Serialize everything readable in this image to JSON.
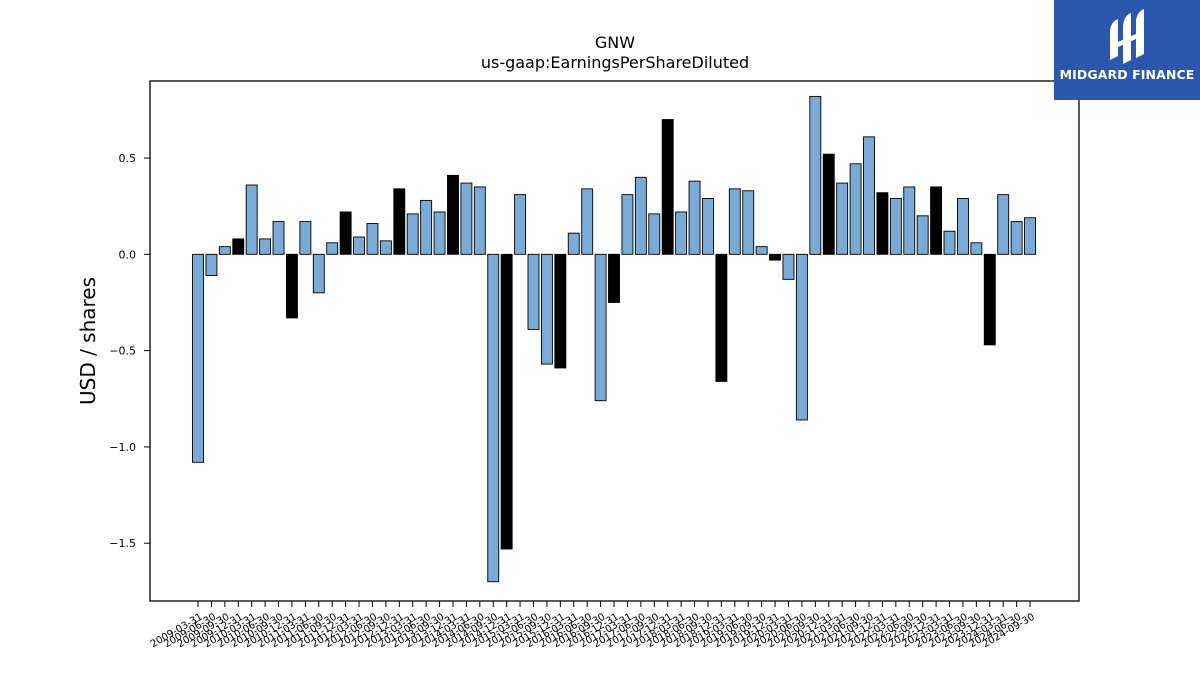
{
  "chart_data": {
    "type": "bar",
    "title": "GNW",
    "subtitle": "us-gaap:EarningsPerShareDiluted",
    "ylabel": "USD  /  shares",
    "xlabel": "",
    "ylim": [
      -1.8,
      0.9
    ],
    "yticks": [
      -1.5,
      -1.0,
      -0.5,
      0.0,
      0.5
    ],
    "ytick_labels": [
      "−1.5",
      "−1.0",
      "−0.5",
      "0.0",
      "0.5"
    ],
    "grid": false,
    "colors": {
      "quarterly": "#7aaad6",
      "annual": "#000000",
      "edge": "#000000"
    },
    "categories": [
      "2009-03-31",
      "2009-06-30",
      "2009-09-30",
      "2009-12-31",
      "2010-03-31",
      "2010-06-30",
      "2010-09-30",
      "2010-12-31",
      "2011-03-31",
      "2011-06-30",
      "2011-09-30",
      "2011-12-31",
      "2012-03-31",
      "2012-06-30",
      "2012-09-30",
      "2012-12-31",
      "2013-03-31",
      "2013-06-30",
      "2013-09-30",
      "2013-12-31",
      "2014-03-31",
      "2014-06-30",
      "2014-09-30",
      "2014-12-31",
      "2015-03-31",
      "2015-06-30",
      "2015-09-30",
      "2015-12-31",
      "2016-03-31",
      "2016-06-30",
      "2016-09-30",
      "2016-12-31",
      "2017-03-31",
      "2017-06-30",
      "2017-09-30",
      "2017-12-31",
      "2018-03-31",
      "2018-06-30",
      "2018-09-30",
      "2018-12-31",
      "2019-03-31",
      "2019-06-30",
      "2019-09-30",
      "2019-12-31",
      "2020-03-31",
      "2020-06-30",
      "2020-09-30",
      "2020-12-31",
      "2021-03-31",
      "2021-06-30",
      "2021-09-30",
      "2021-12-31",
      "2022-03-31",
      "2022-06-30",
      "2022-09-30",
      "2022-12-31",
      "2023-03-31",
      "2023-06-30",
      "2023-09-30",
      "2023-12-31",
      "2024-03-31",
      "2024-06-30",
      "2024-09-30"
    ],
    "values": [
      -1.08,
      -0.11,
      0.04,
      0.08,
      0.36,
      0.08,
      0.17,
      -0.33,
      0.17,
      -0.2,
      0.06,
      0.22,
      0.09,
      0.16,
      0.07,
      0.34,
      0.21,
      0.28,
      0.22,
      0.41,
      0.37,
      0.35,
      -1.7,
      -1.53,
      0.31,
      -0.39,
      -0.57,
      -0.59,
      0.11,
      0.34,
      -0.76,
      -0.25,
      0.31,
      0.4,
      0.21,
      0.7,
      0.22,
      0.38,
      0.29,
      -0.66,
      0.34,
      0.33,
      0.04,
      -0.03,
      -0.13,
      -0.86,
      0.82,
      0.52,
      0.37,
      0.47,
      0.61,
      0.32,
      0.29,
      0.35,
      0.2,
      0.35,
      0.12,
      0.29,
      0.06,
      -0.47,
      0.31,
      0.17,
      0.19
    ],
    "annual_flags": [
      0,
      0,
      0,
      1,
      0,
      0,
      0,
      1,
      0,
      0,
      0,
      1,
      0,
      0,
      0,
      1,
      0,
      0,
      0,
      1,
      0,
      0,
      0,
      1,
      0,
      0,
      0,
      1,
      0,
      0,
      0,
      1,
      0,
      0,
      0,
      1,
      0,
      0,
      0,
      1,
      0,
      0,
      0,
      1,
      0,
      0,
      0,
      1,
      0,
      0,
      0,
      1,
      0,
      0,
      0,
      1,
      0,
      0,
      0,
      1,
      0,
      0,
      0
    ]
  },
  "logo": {
    "text": "MIDGARD FINANCE",
    "icon": "midgard-logo-icon"
  }
}
